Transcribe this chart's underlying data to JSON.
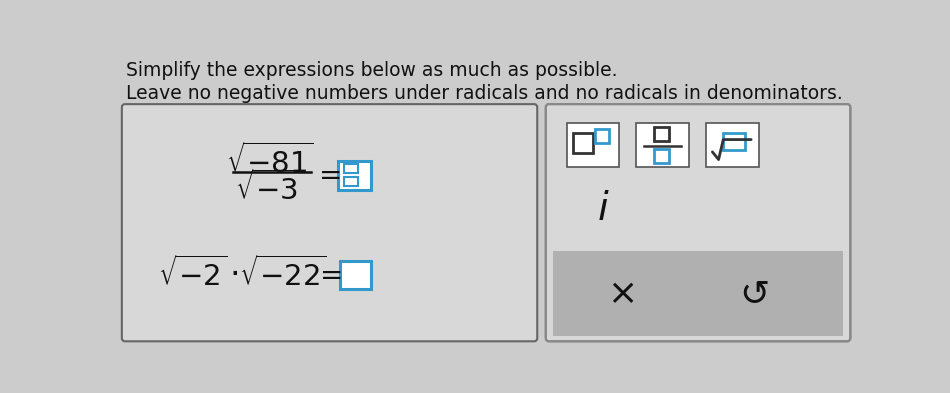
{
  "title1": "Simplify the expressions below as much as possible.",
  "title2": "Leave no negative numbers under radicals and no radicals in denominators.",
  "bg_color": "#cccccc",
  "box1_bg": "#d8d8d8",
  "box2_bg": "#d8d8d8",
  "box2_bottom_bg": "#b0b0b0",
  "answer_box_color": "#3399cc",
  "text_color": "#111111",
  "fig_width": 9.5,
  "fig_height": 3.93,
  "dpi": 100
}
